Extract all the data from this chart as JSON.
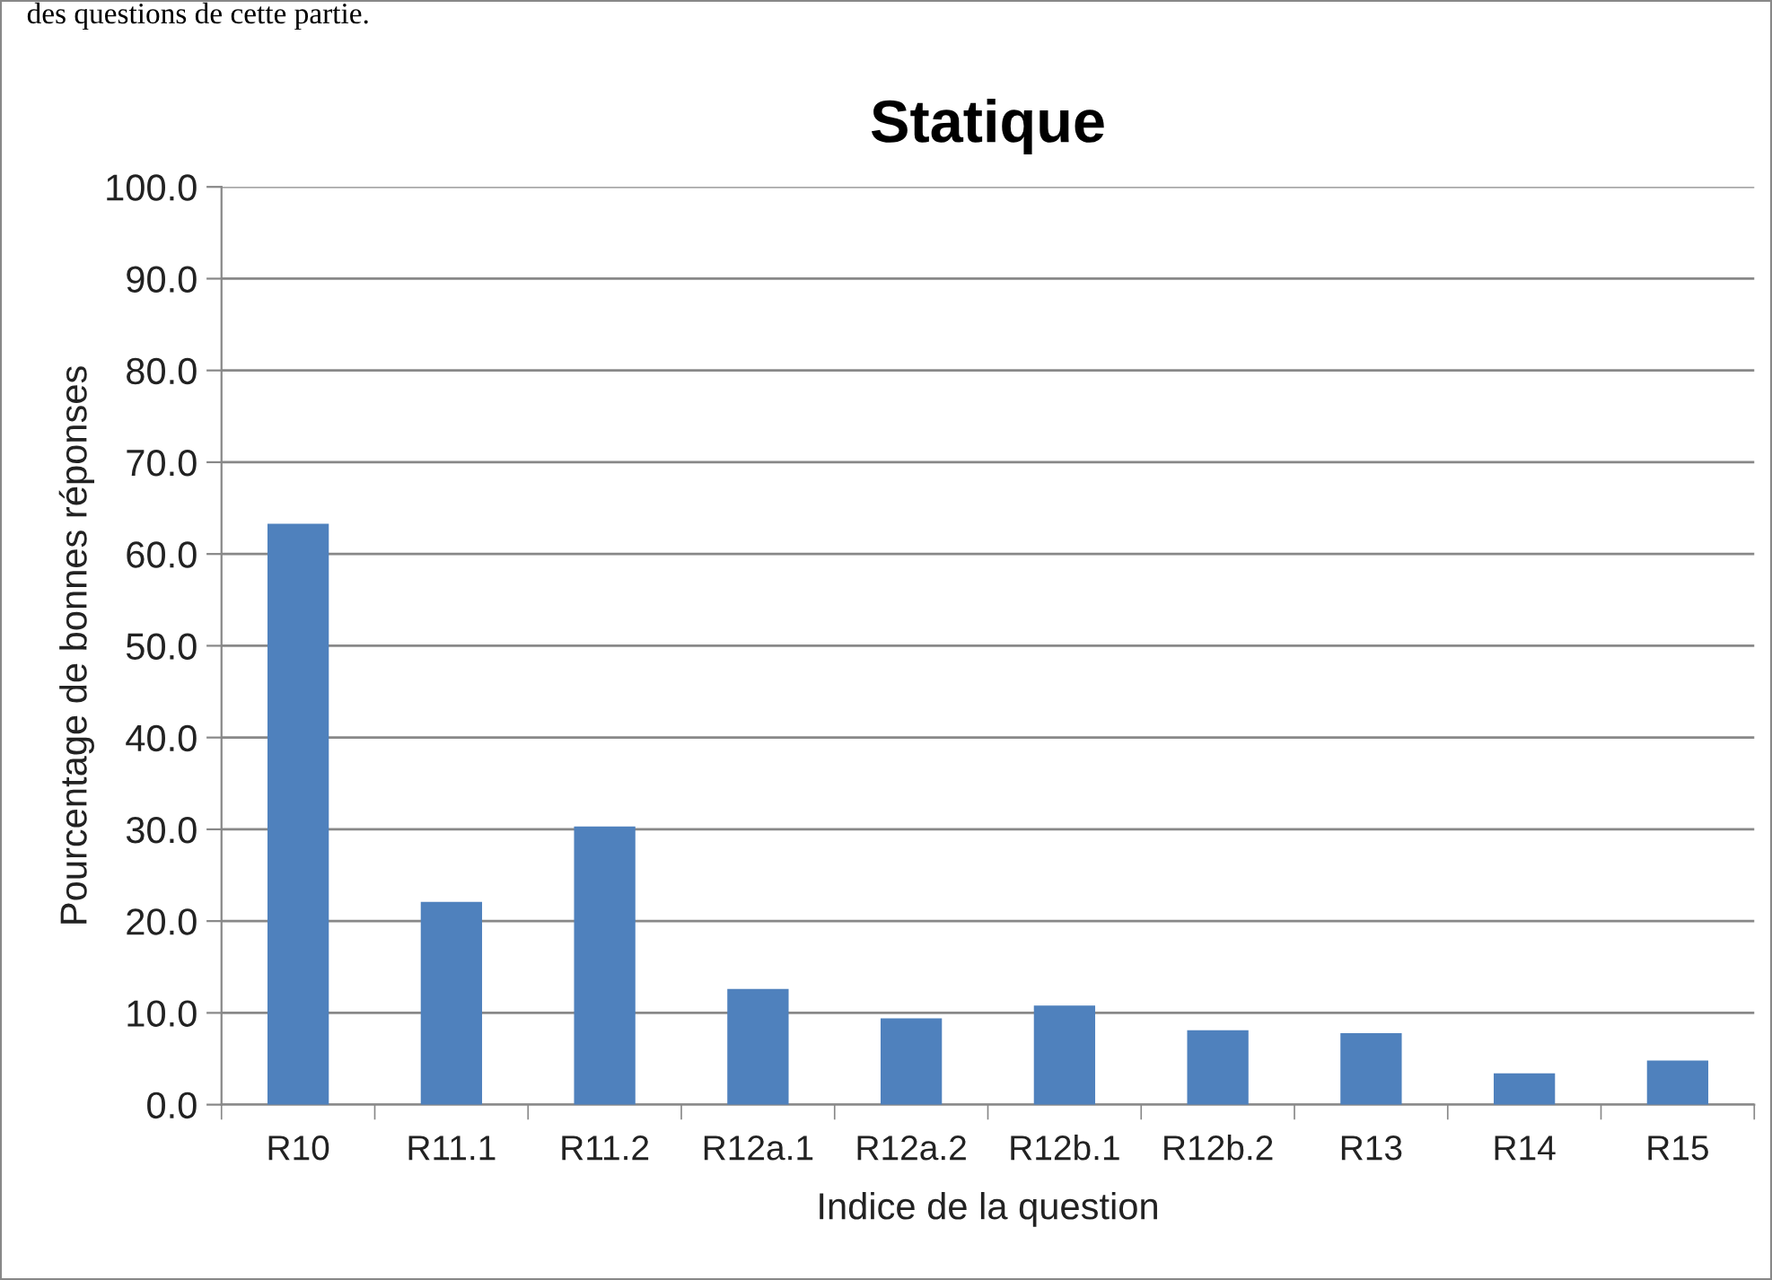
{
  "chart_data": {
    "type": "bar",
    "title": "Statique",
    "xlabel": "Indice de la question",
    "ylabel": "Pourcentage de bonnes réponses",
    "annotations": [
      "des questions de cette partie."
    ],
    "categories": [
      "R10",
      "R11.1",
      "R11.2",
      "R12a.1",
      "R12a.2",
      "R12b.1",
      "R12b.2",
      "R13",
      "R14",
      "R15"
    ],
    "values": [
      63.3,
      22.1,
      30.3,
      12.6,
      9.4,
      10.8,
      8.1,
      7.8,
      3.4,
      4.8
    ],
    "color": "#4f81bd",
    "ylim": [
      0,
      100
    ],
    "yticks": [
      {
        "value": 0,
        "label": "0.0"
      },
      {
        "value": 10,
        "label": "10.0"
      },
      {
        "value": 20,
        "label": "20.0"
      },
      {
        "value": 30,
        "label": "30.0"
      },
      {
        "value": 40,
        "label": "40.0"
      },
      {
        "value": 50,
        "label": "50.0"
      },
      {
        "value": 60,
        "label": "60.0"
      },
      {
        "value": 70,
        "label": "70.0"
      },
      {
        "value": 80,
        "label": "80.0"
      },
      {
        "value": 90,
        "label": "90.0"
      },
      {
        "value": 100,
        "label": "100.0"
      }
    ],
    "grid": "y",
    "legend": false
  }
}
